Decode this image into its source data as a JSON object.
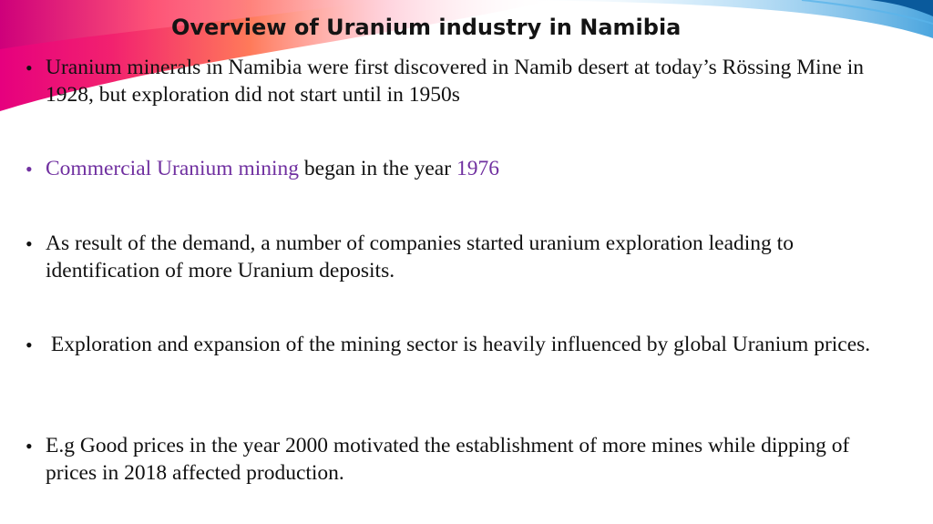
{
  "slide": {
    "title": "Overview of Uranium industry in Namibia",
    "bullet_symbol": "•",
    "bullets": [
      {
        "text": "Uranium minerals in Namibia were first discovered in Namib desert at today’s Rössing Mine in 1928, but exploration did not start until in 1950s"
      },
      {
        "part1": "Commercial Uranium mining",
        "part2": " began in the year ",
        "part3": "1976"
      },
      {
        "text": "As result of the demand, a number of companies started uranium exploration leading to identification of more Uranium deposits."
      },
      {
        "text": " Exploration and expansion of the mining sector is heavily influenced by global Uranium prices."
      },
      {
        "text": "E.g Good prices in the year 2000 motivated the establishment of more mines while dipping of prices in 2018 affected production."
      }
    ]
  },
  "colors": {
    "highlight": "#7030a0",
    "body_text": "#111111",
    "swoosh_magenta": "#e6007e",
    "swoosh_orange": "#ff7a3d",
    "swoosh_blue": "#1e8fd6"
  }
}
